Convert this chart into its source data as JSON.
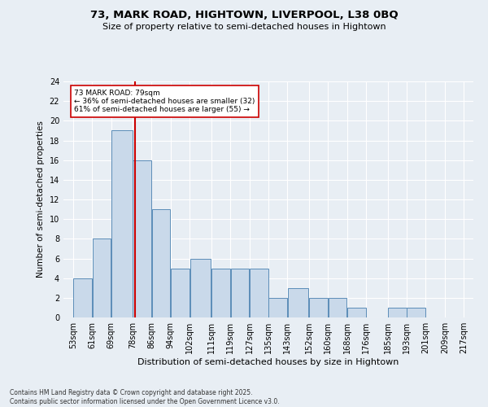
{
  "title_line1": "73, MARK ROAD, HIGHTOWN, LIVERPOOL, L38 0BQ",
  "title_line2": "Size of property relative to semi-detached houses in Hightown",
  "xlabel": "Distribution of semi-detached houses by size in Hightown",
  "ylabel": "Number of semi-detached properties",
  "footnote": "Contains HM Land Registry data © Crown copyright and database right 2025.\nContains public sector information licensed under the Open Government Licence v3.0.",
  "bar_left_edges": [
    53,
    61,
    69,
    78,
    86,
    94,
    102,
    111,
    119,
    127,
    135,
    143,
    152,
    160,
    168,
    176,
    185,
    193,
    201,
    209
  ],
  "bar_widths": [
    8,
    8,
    9,
    8,
    8,
    8,
    9,
    8,
    8,
    8,
    8,
    9,
    8,
    8,
    8,
    9,
    8,
    8,
    8,
    8
  ],
  "bar_heights": [
    4,
    8,
    19,
    16,
    11,
    5,
    6,
    5,
    5,
    5,
    2,
    3,
    2,
    2,
    1,
    0,
    1,
    1,
    0,
    0
  ],
  "bar_color": "#c9d9ea",
  "bar_edgecolor": "#5b8db8",
  "tick_labels": [
    "53sqm",
    "61sqm",
    "69sqm",
    "78sqm",
    "86sqm",
    "94sqm",
    "102sqm",
    "111sqm",
    "119sqm",
    "127sqm",
    "135sqm",
    "143sqm",
    "152sqm",
    "160sqm",
    "168sqm",
    "176sqm",
    "185sqm",
    "193sqm",
    "201sqm",
    "209sqm",
    "217sqm"
  ],
  "tick_positions": [
    53,
    61,
    69,
    78,
    86,
    94,
    102,
    111,
    119,
    127,
    135,
    143,
    152,
    160,
    168,
    176,
    185,
    193,
    201,
    209,
    217
  ],
  "ylim": [
    0,
    24
  ],
  "xlim": [
    49,
    221
  ],
  "marker_x": 79,
  "marker_color": "#cc0000",
  "annotation_title": "73 MARK ROAD: 79sqm",
  "annotation_line1": "← 36% of semi-detached houses are smaller (32)",
  "annotation_line2": "61% of semi-detached houses are larger (55) →",
  "annotation_box_color": "#ffffff",
  "annotation_box_edgecolor": "#cc0000",
  "bg_color": "#e8eef4",
  "plot_bg_color": "#e8eef4",
  "grid_color": "#ffffff"
}
